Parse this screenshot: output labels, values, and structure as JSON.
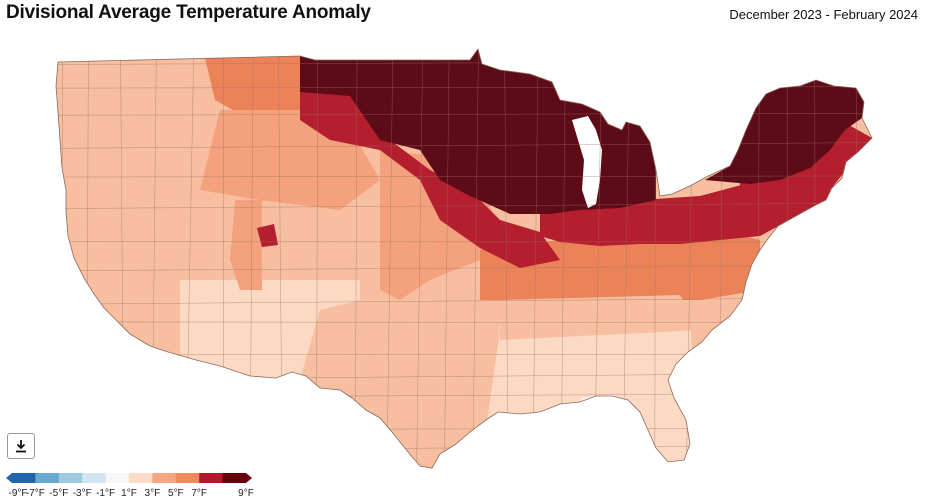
{
  "header": {
    "title": "Divisional Average Temperature Anomaly",
    "period": "December 2023 - February 2024"
  },
  "legend": {
    "colors": [
      "#2166ac",
      "#67a9cf",
      "#9ecae1",
      "#d1e5f0",
      "#f7f7f7",
      "#fddbc7",
      "#f4a582",
      "#ef8a5a",
      "#b2182b",
      "#67000d"
    ],
    "labels": [
      "-9°F",
      "-7°F",
      "-5°F",
      "-3°F",
      "-1°F",
      "1°F",
      "3°F",
      "5°F",
      "7°F",
      "9°F"
    ]
  },
  "colors": {
    "pale": "#fcd9c2",
    "light": "#f7bea0",
    "mid": "#f3a27d",
    "orange": "#ec8358",
    "red": "#b51e2e",
    "darkred": "#5e0b18",
    "near_zero": "#f2f2f2",
    "border": "#9c7060"
  },
  "toolbar": {
    "download_icon": "download-icon"
  }
}
